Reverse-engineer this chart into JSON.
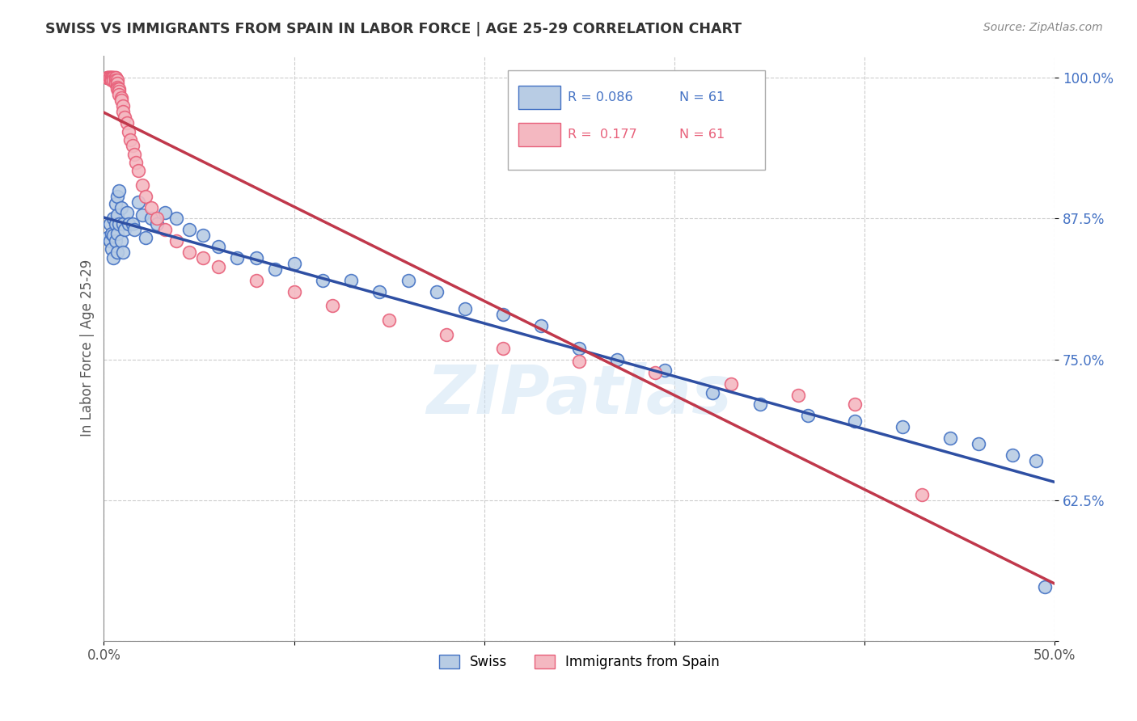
{
  "title": "SWISS VS IMMIGRANTS FROM SPAIN IN LABOR FORCE | AGE 25-29 CORRELATION CHART",
  "source": "Source: ZipAtlas.com",
  "ylabel": "In Labor Force | Age 25-29",
  "xlim": [
    0.0,
    0.5
  ],
  "ylim": [
    0.5,
    1.02
  ],
  "xticks": [
    0.0,
    0.1,
    0.2,
    0.3,
    0.4,
    0.5
  ],
  "xticklabels": [
    "0.0%",
    "",
    "",
    "",
    "",
    "50.0%"
  ],
  "yticks": [
    0.5,
    0.625,
    0.75,
    0.875,
    1.0
  ],
  "yticklabels": [
    "",
    "62.5%",
    "75.0%",
    "87.5%",
    "100.0%"
  ],
  "ytick_color": "#4472c4",
  "legend_r_blue": "R = 0.086",
  "legend_n_blue": "N = 61",
  "legend_r_pink": "R =  0.177",
  "legend_n_pink": "N = 61",
  "blue_color": "#4472c4",
  "pink_color": "#e8607a",
  "blue_fill": "#b8cce4",
  "pink_fill": "#f4b8c1",
  "line_blue": "#2e4fa3",
  "line_pink": "#c0384b",
  "watermark": "ZIPatlas",
  "blue_x": [
    0.002,
    0.003,
    0.003,
    0.004,
    0.004,
    0.005,
    0.005,
    0.005,
    0.006,
    0.006,
    0.006,
    0.007,
    0.007,
    0.007,
    0.007,
    0.008,
    0.008,
    0.009,
    0.009,
    0.01,
    0.01,
    0.011,
    0.012,
    0.013,
    0.015,
    0.016,
    0.018,
    0.02,
    0.022,
    0.025,
    0.028,
    0.032,
    0.038,
    0.045,
    0.052,
    0.06,
    0.07,
    0.08,
    0.09,
    0.1,
    0.115,
    0.13,
    0.145,
    0.16,
    0.175,
    0.19,
    0.21,
    0.23,
    0.25,
    0.27,
    0.295,
    0.32,
    0.345,
    0.37,
    0.395,
    0.42,
    0.445,
    0.46,
    0.478,
    0.49,
    0.495
  ],
  "blue_y": [
    0.858,
    0.87,
    0.855,
    0.862,
    0.848,
    0.875,
    0.86,
    0.84,
    0.888,
    0.87,
    0.855,
    0.895,
    0.878,
    0.862,
    0.845,
    0.9,
    0.87,
    0.885,
    0.855,
    0.87,
    0.845,
    0.865,
    0.88,
    0.87,
    0.87,
    0.865,
    0.89,
    0.878,
    0.858,
    0.875,
    0.87,
    0.88,
    0.875,
    0.865,
    0.86,
    0.85,
    0.84,
    0.84,
    0.83,
    0.835,
    0.82,
    0.82,
    0.81,
    0.82,
    0.81,
    0.795,
    0.79,
    0.78,
    0.76,
    0.75,
    0.74,
    0.72,
    0.71,
    0.7,
    0.695,
    0.69,
    0.68,
    0.675,
    0.665,
    0.66,
    0.548
  ],
  "pink_x": [
    0.002,
    0.002,
    0.002,
    0.002,
    0.003,
    0.003,
    0.003,
    0.003,
    0.003,
    0.004,
    0.004,
    0.004,
    0.004,
    0.005,
    0.005,
    0.005,
    0.005,
    0.006,
    0.006,
    0.006,
    0.006,
    0.007,
    0.007,
    0.007,
    0.007,
    0.008,
    0.008,
    0.008,
    0.009,
    0.009,
    0.01,
    0.01,
    0.011,
    0.012,
    0.013,
    0.014,
    0.015,
    0.016,
    0.017,
    0.018,
    0.02,
    0.022,
    0.025,
    0.028,
    0.032,
    0.038,
    0.045,
    0.052,
    0.06,
    0.08,
    0.1,
    0.12,
    0.15,
    0.18,
    0.21,
    0.25,
    0.29,
    0.33,
    0.365,
    0.395,
    0.43
  ],
  "pink_y": [
    1.0,
    1.0,
    1.0,
    1.0,
    1.0,
    1.0,
    1.0,
    1.0,
    1.0,
    1.0,
    1.0,
    1.0,
    0.998,
    1.0,
    1.0,
    1.0,
    0.998,
    1.0,
    1.0,
    0.998,
    0.995,
    0.998,
    0.995,
    0.992,
    0.99,
    0.99,
    0.988,
    0.985,
    0.982,
    0.98,
    0.975,
    0.97,
    0.965,
    0.96,
    0.952,
    0.945,
    0.94,
    0.932,
    0.925,
    0.918,
    0.905,
    0.895,
    0.885,
    0.875,
    0.865,
    0.855,
    0.845,
    0.84,
    0.832,
    0.82,
    0.81,
    0.798,
    0.785,
    0.772,
    0.76,
    0.748,
    0.738,
    0.728,
    0.718,
    0.71,
    0.63
  ]
}
